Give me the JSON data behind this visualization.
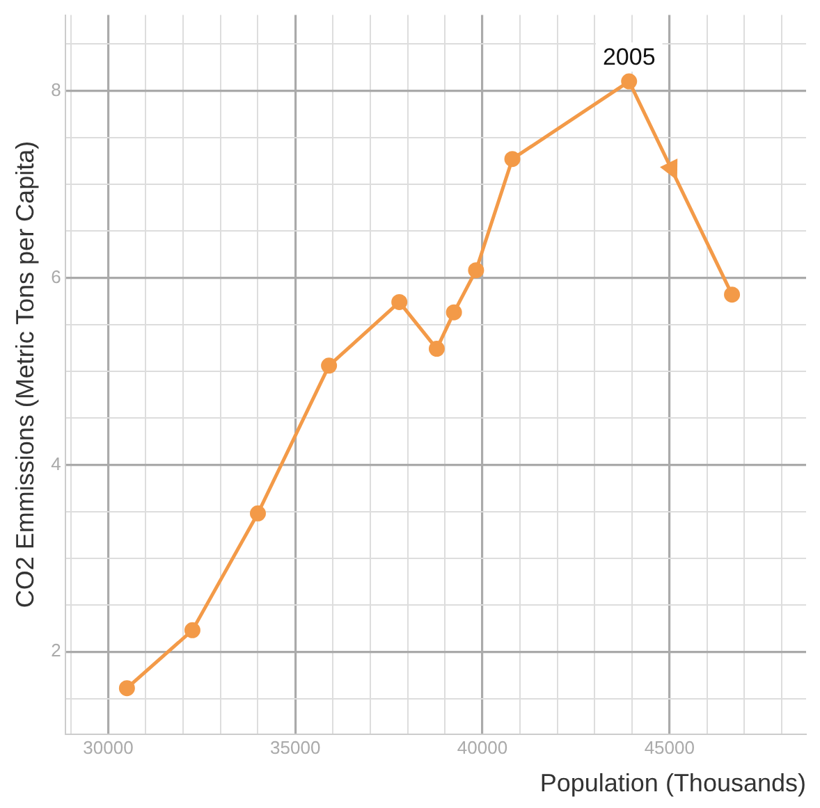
{
  "chart_data": {
    "type": "line",
    "xlabel": "Population (Thousands)",
    "ylabel": "CO2 Emmissions (Metric Tons per Capita)",
    "x": [
      30500,
      32250,
      34000,
      35900,
      37780,
      38780,
      39240,
      39830,
      40800,
      43920,
      46670
    ],
    "series": [
      {
        "color": "#f39a48",
        "values": [
          1.61,
          2.23,
          3.48,
          5.06,
          5.74,
          5.24,
          5.63,
          6.08,
          7.27,
          8.1,
          5.82
        ]
      }
    ],
    "xlim": [
      28850,
      48650
    ],
    "ylim": [
      1.12,
      8.81
    ],
    "xticks": [
      {
        "value": 29000,
        "label": null
      },
      30000,
      {
        "value": 31000,
        "label": null
      },
      {
        "value": 32000,
        "label": null
      },
      {
        "value": 33000,
        "label": null
      },
      {
        "value": 34000,
        "label": null
      },
      35000,
      {
        "value": 36000,
        "label": null
      },
      {
        "value": 37000,
        "label": null
      },
      {
        "value": 38000,
        "label": null
      },
      {
        "value": 39000,
        "label": null
      },
      40000,
      {
        "value": 41000,
        "label": null
      },
      {
        "value": 42000,
        "label": null
      },
      {
        "value": 43000,
        "label": null
      },
      {
        "value": 44000,
        "label": null
      },
      45000,
      {
        "value": 46000,
        "label": null
      },
      {
        "value": 47000,
        "label": null
      },
      {
        "value": 48000,
        "label": null
      }
    ],
    "yticks": [
      {
        "value": 1.5,
        "label": null
      },
      2,
      {
        "value": 2.5,
        "label": null
      },
      {
        "value": 3,
        "label": null
      },
      {
        "value": 3.5,
        "label": null
      },
      4,
      {
        "value": 4.5,
        "label": null
      },
      {
        "value": 5,
        "label": null
      },
      {
        "value": 5.5,
        "label": null
      },
      6,
      {
        "value": 6.5,
        "label": null
      },
      {
        "value": 7,
        "label": null
      },
      {
        "value": 7.5,
        "label": null
      },
      8,
      {
        "value": 8.5,
        "label": null
      }
    ],
    "annotations": [
      {
        "text": "2005",
        "x": 43920,
        "y": 8.1
      }
    ],
    "grid": true,
    "legend": false,
    "marker": "circle",
    "line_style": "solid"
  }
}
